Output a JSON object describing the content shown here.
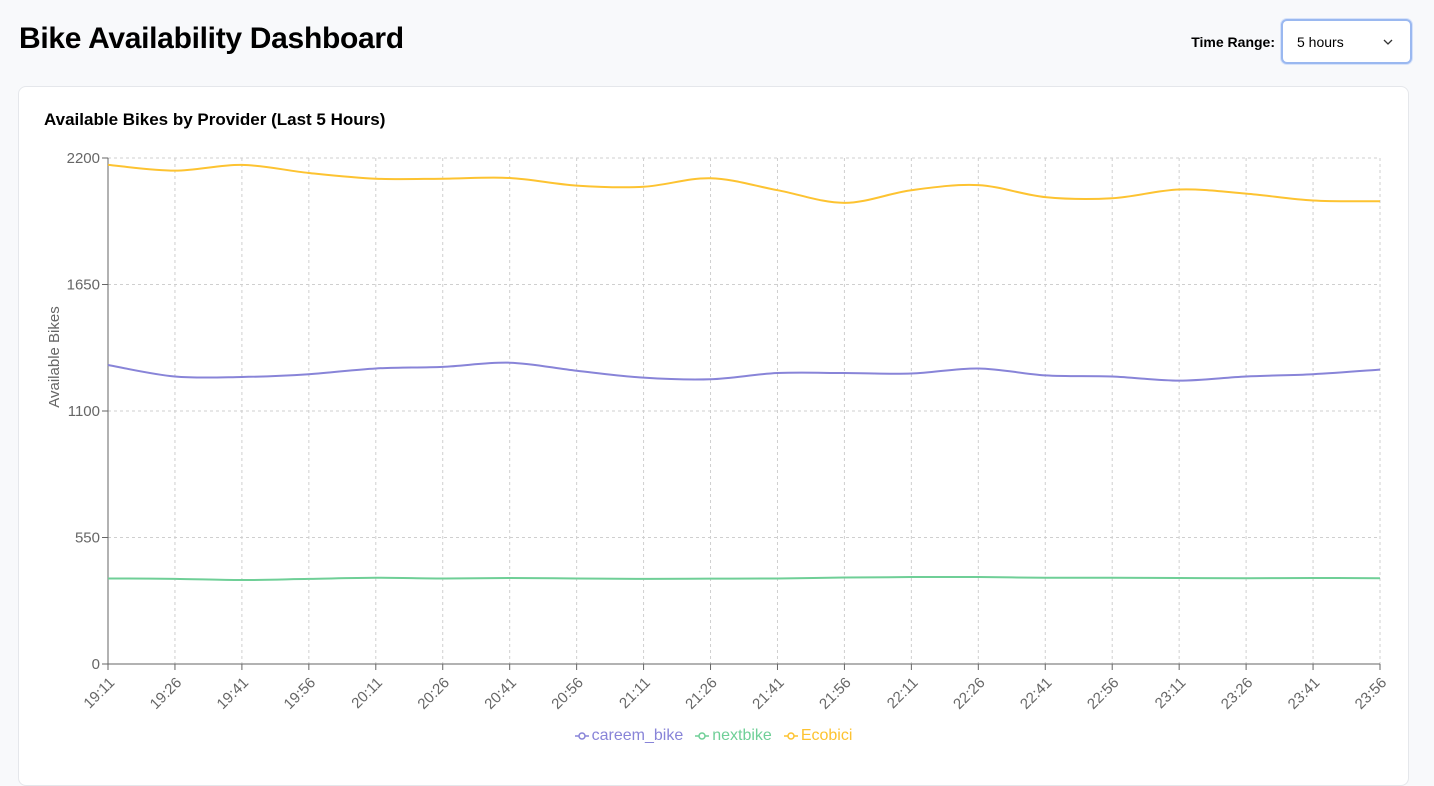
{
  "header": {
    "title": "Bike Availability Dashboard",
    "range_label": "Time Range:",
    "range_value": "5 hours",
    "range_icon": "chevron-down-icon"
  },
  "card": {
    "title": "Available Bikes by Provider (Last 5 Hours)"
  },
  "chart_data": {
    "type": "line",
    "ylabel": "Available Bikes",
    "xlabel": "",
    "ylim": [
      0,
      2200
    ],
    "yticks": [
      0,
      550,
      1100,
      1650,
      2200
    ],
    "grid": true,
    "legend_position": "bottom",
    "x": [
      "19:11",
      "19:26",
      "19:41",
      "19:56",
      "20:11",
      "20:26",
      "20:41",
      "20:56",
      "21:11",
      "21:26",
      "21:41",
      "21:56",
      "22:11",
      "22:26",
      "22:41",
      "22:56",
      "23:11",
      "23:26",
      "23:41",
      "23:56"
    ],
    "series": [
      {
        "name": "careem_bike",
        "color": "#8884d8",
        "values": [
          1300,
          1250,
          1248,
          1260,
          1285,
          1292,
          1310,
          1275,
          1245,
          1238,
          1265,
          1265,
          1263,
          1285,
          1255,
          1250,
          1232,
          1250,
          1260,
          1280
        ]
      },
      {
        "name": "nextbike",
        "color": "#6fcf97",
        "values": [
          372,
          370,
          365,
          370,
          375,
          372,
          374,
          372,
          370,
          371,
          372,
          376,
          378,
          378,
          375,
          375,
          374,
          373,
          374,
          373
        ]
      },
      {
        "name": "Ecobici",
        "color": "#fdc331",
        "values": [
          2170,
          2145,
          2170,
          2135,
          2110,
          2110,
          2113,
          2080,
          2075,
          2112,
          2060,
          2005,
          2060,
          2082,
          2030,
          2025,
          2063,
          2045,
          2015,
          2012
        ]
      }
    ]
  }
}
